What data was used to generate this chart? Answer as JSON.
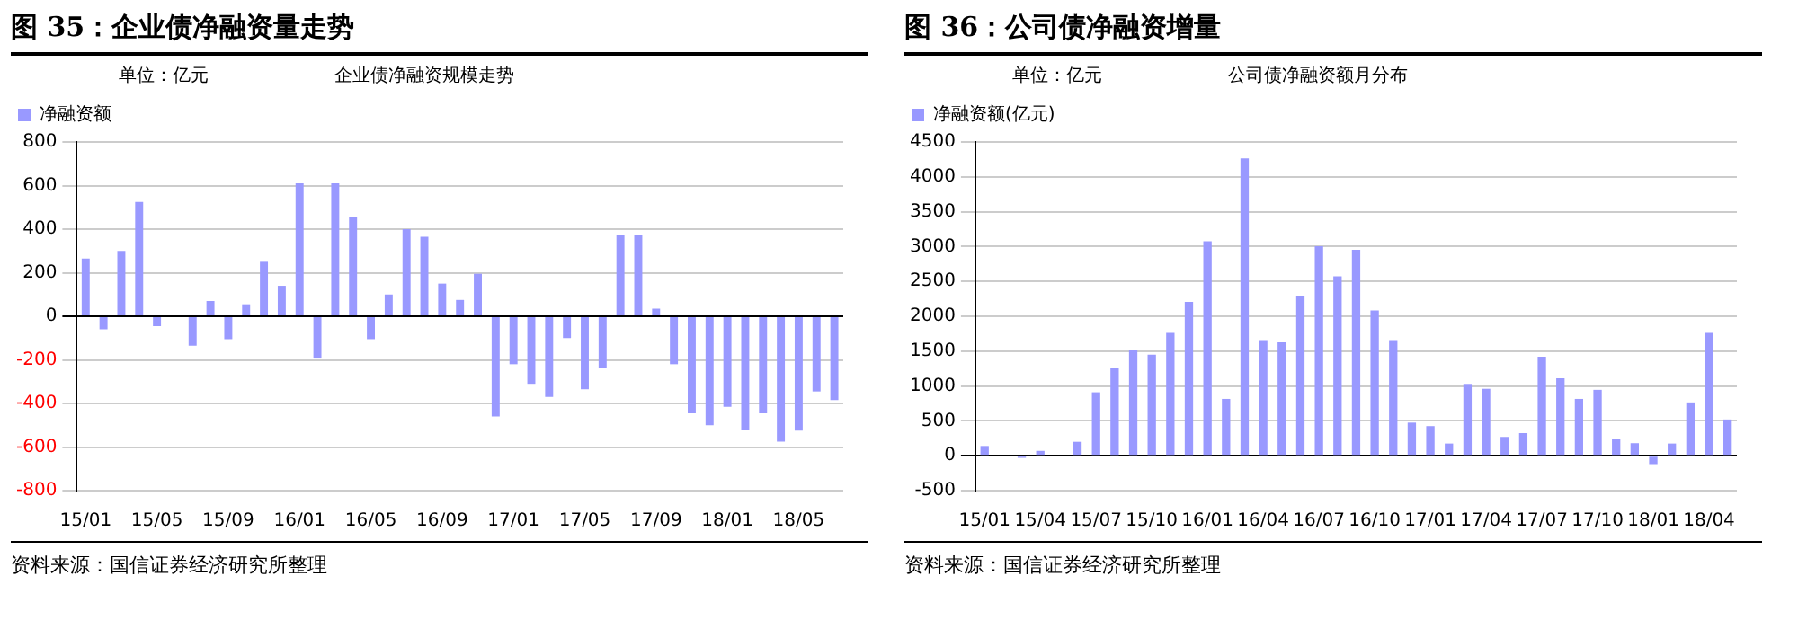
{
  "chart_data": [
    {
      "type": "bar",
      "title": "图 35：企业债净融资量走势",
      "subtitle": "企业债净融资规模走势",
      "ylabel": "单位：亿元",
      "categories": [
        "15/01",
        null,
        null,
        null,
        "15/05",
        null,
        null,
        null,
        "15/09",
        null,
        null,
        null,
        "16/01",
        null,
        null,
        null,
        "16/05",
        null,
        null,
        null,
        "16/09",
        null,
        null,
        null,
        "17/01",
        null,
        null,
        null,
        "17/05",
        null,
        null,
        null,
        "17/09",
        null,
        null,
        null,
        "18/01",
        null,
        null,
        null,
        "18/05",
        null,
        null
      ],
      "series": [
        {
          "name": "净融资额",
          "color": "#9999ff",
          "values": [
            265,
            -60,
            300,
            525,
            -45,
            null,
            -135,
            70,
            -105,
            55,
            250,
            140,
            610,
            -190,
            610,
            455,
            -105,
            100,
            400,
            365,
            150,
            75,
            195,
            -460,
            -220,
            -310,
            -370,
            -100,
            -335,
            -235,
            375,
            375,
            35,
            -220,
            -445,
            -500,
            -415,
            -520,
            -445,
            -575,
            -525,
            -345,
            -385
          ]
        }
      ],
      "ylim": [
        -800,
        800
      ],
      "yticks": [
        -800,
        -600,
        -400,
        -200,
        0,
        200,
        400,
        600,
        800
      ],
      "grid": "y",
      "legend": "top left",
      "annotations": [
        "资料来源：国信证券经济研究所整理"
      ]
    },
    {
      "type": "bar",
      "title": "图 36：公司债净融资增量",
      "subtitle": "公司债净融资额月分布",
      "ylabel": "单位：亿元",
      "categories": [
        "15/01",
        null,
        null,
        "15/04",
        null,
        null,
        "15/07",
        null,
        null,
        "15/10",
        null,
        null,
        "16/01",
        null,
        null,
        "16/04",
        null,
        null,
        "16/07",
        null,
        null,
        "16/10",
        null,
        null,
        "17/01",
        null,
        null,
        "17/04",
        null,
        null,
        "17/07",
        null,
        null,
        "17/10",
        null,
        null,
        "18/01",
        null,
        null,
        "18/04",
        null
      ],
      "series": [
        {
          "name": "净融资额(亿元)",
          "color": "#9999ff",
          "values": [
            140,
            0,
            -30,
            70,
            null,
            200,
            910,
            1260,
            1510,
            1450,
            1760,
            2205,
            3075,
            815,
            4265,
            1660,
            1625,
            2295,
            3005,
            2575,
            2955,
            2085,
            1660,
            475,
            425,
            175,
            1030,
            960,
            270,
            325,
            1420,
            1110,
            815,
            945,
            235,
            180,
            -120,
            175,
            765,
            1760,
            520
          ]
        }
      ],
      "ylim": [
        -500,
        4500
      ],
      "yticks": [
        -500,
        0,
        500,
        1000,
        1500,
        2000,
        2500,
        3000,
        3500,
        4000,
        4500
      ],
      "grid": "y",
      "legend": "top left",
      "annotations": [
        "资料来源：国信证券经济研究所整理"
      ]
    }
  ]
}
